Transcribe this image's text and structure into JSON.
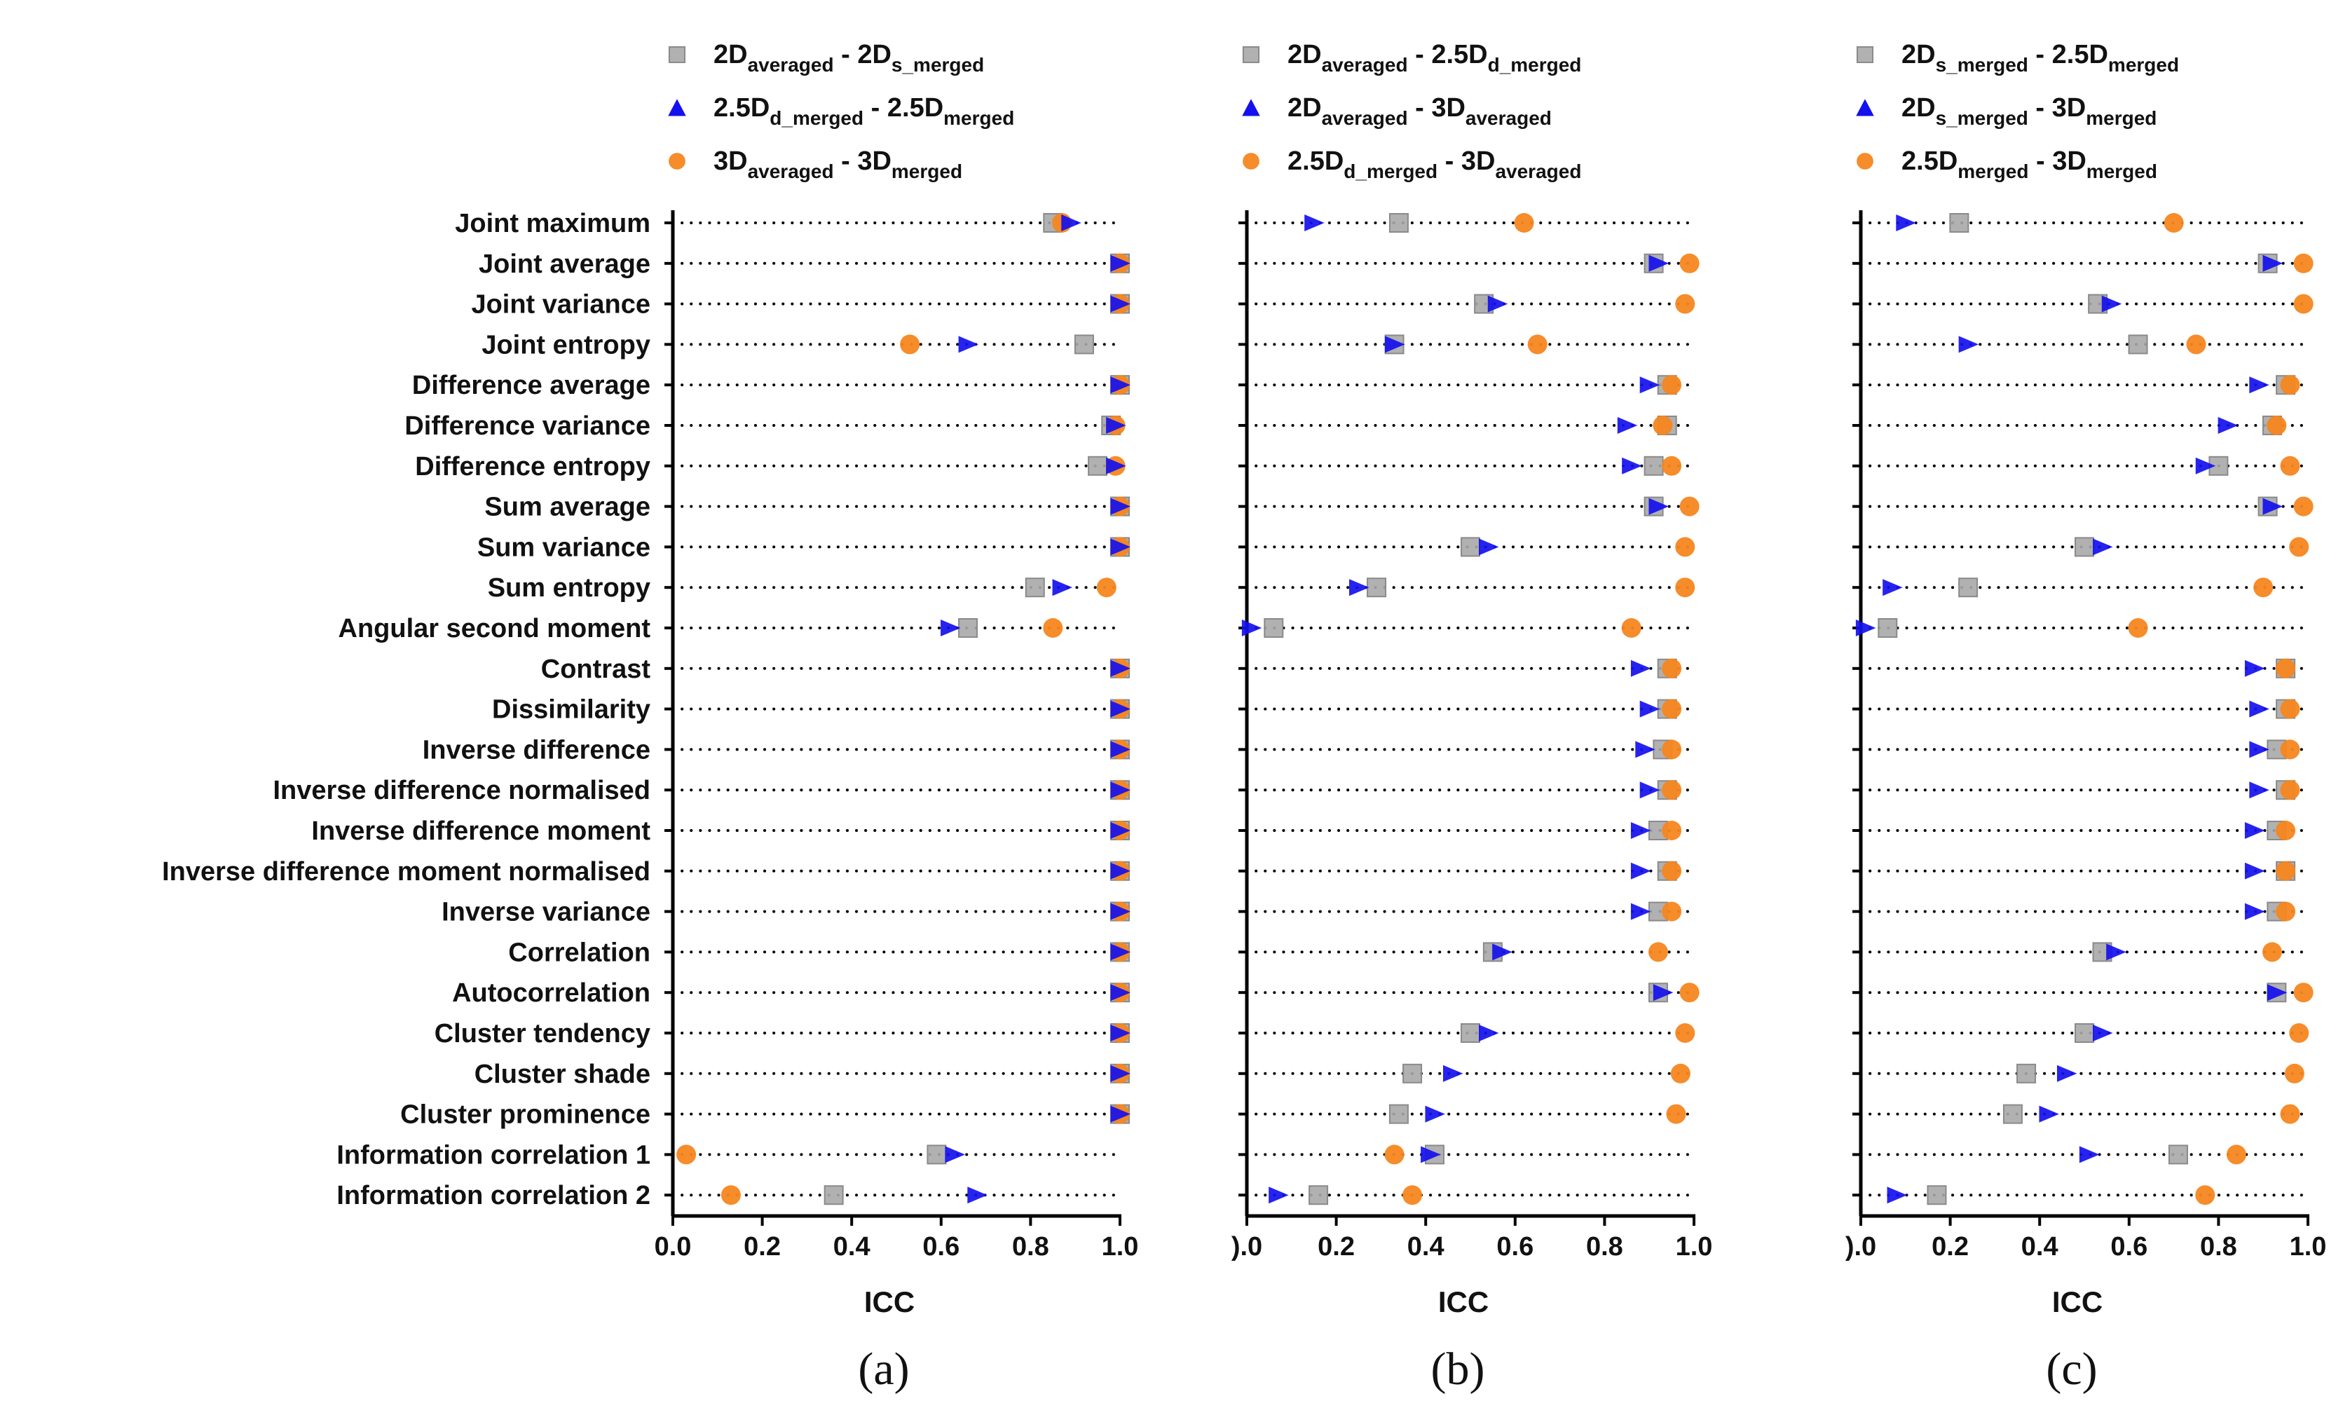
{
  "colors": {
    "gray": "#a8a8a8",
    "gray_edge": "#8a8a8a",
    "blue": "#1410ee",
    "orange": "#f5861f",
    "axis": "#000000",
    "dots": "#000000"
  },
  "features": [
    "Joint maximum",
    "Joint average",
    "Joint variance",
    "Joint entropy",
    "Difference average",
    "Difference variance",
    "Difference entropy",
    "Sum average",
    "Sum variance",
    "Sum entropy",
    "Angular second moment",
    "Contrast",
    "Dissimilarity",
    "Inverse difference",
    "Inverse difference normalised",
    "Inverse difference moment",
    "Inverse difference moment normalised",
    "Inverse variance",
    "Correlation",
    "Autocorrelation",
    "Cluster tendency",
    "Cluster shade",
    "Cluster prominence",
    "Information correlation 1",
    "Information correlation 2"
  ],
  "chart_data": [
    {
      "type": "scatter",
      "panel_label": "(a)",
      "xlabel": "ICC",
      "xlim": [
        0.0,
        1.0
      ],
      "xticks": [
        "0.0",
        "0.2",
        "0.4",
        "0.6",
        "0.8",
        "1.0"
      ],
      "legend": [
        {
          "marker": "square",
          "text": [
            [
              "2D",
              "main"
            ],
            [
              "averaged",
              "sub"
            ],
            [
              " - 2D",
              "main"
            ],
            [
              "s_merged",
              "sub"
            ]
          ]
        },
        {
          "marker": "triangle",
          "text": [
            [
              "2.5D",
              "main"
            ],
            [
              "d_merged",
              "sub"
            ],
            [
              " - 2.5D",
              "main"
            ],
            [
              "merged",
              "sub"
            ]
          ]
        },
        {
          "marker": "circle",
          "text": [
            [
              "3D",
              "main"
            ],
            [
              "averaged",
              "sub"
            ],
            [
              " - 3D",
              "main"
            ],
            [
              "merged",
              "sub"
            ]
          ]
        }
      ],
      "series": [
        {
          "name": "2Daveraged - 2Ds_merged",
          "marker": "square",
          "color": "#a8a8a8",
          "values": [
            0.85,
            1.0,
            1.0,
            0.92,
            1.0,
            0.98,
            0.95,
            1.0,
            1.0,
            0.81,
            0.66,
            1.0,
            1.0,
            1.0,
            1.0,
            1.0,
            1.0,
            1.0,
            1.0,
            1.0,
            1.0,
            1.0,
            1.0,
            0.59,
            0.36
          ]
        },
        {
          "name": "2.5Dd_merged - 2.5Dmerged",
          "marker": "triangle",
          "color": "#1410ee",
          "values": [
            0.89,
            1.0,
            1.0,
            0.66,
            1.0,
            0.99,
            0.99,
            1.0,
            1.0,
            0.87,
            0.62,
            1.0,
            1.0,
            1.0,
            1.0,
            1.0,
            1.0,
            1.0,
            1.0,
            1.0,
            1.0,
            1.0,
            1.0,
            0.63,
            0.68
          ]
        },
        {
          "name": "3Daveraged - 3Dmerged",
          "marker": "circle",
          "color": "#f5861f",
          "values": [
            0.87,
            1.0,
            1.0,
            0.53,
            1.0,
            0.99,
            0.99,
            1.0,
            1.0,
            0.97,
            0.85,
            1.0,
            1.0,
            1.0,
            1.0,
            1.0,
            1.0,
            1.0,
            1.0,
            1.0,
            1.0,
            1.0,
            1.0,
            0.03,
            0.13
          ]
        }
      ]
    },
    {
      "type": "scatter",
      "panel_label": "(b)",
      "xlabel": "ICC",
      "xlim": [
        0.0,
        1.0
      ],
      "xticks": [
        ").0",
        "0.2",
        "0.4",
        "0.6",
        "0.8",
        "1.0"
      ],
      "legend": [
        {
          "marker": "square",
          "text": [
            [
              "2D",
              "main"
            ],
            [
              "averaged",
              "sub"
            ],
            [
              " - 2.5D",
              "main"
            ],
            [
              "d_merged",
              "sub"
            ]
          ]
        },
        {
          "marker": "triangle",
          "text": [
            [
              "2D",
              "main"
            ],
            [
              "averaged",
              "sub"
            ],
            [
              " - 3D",
              "main"
            ],
            [
              "averaged",
              "sub"
            ]
          ]
        },
        {
          "marker": "circle",
          "text": [
            [
              "2.5D",
              "main"
            ],
            [
              "d_merged",
              "sub"
            ],
            [
              " - 3D",
              "main"
            ],
            [
              "averaged",
              "sub"
            ]
          ]
        }
      ],
      "series": [
        {
          "name": "2Daveraged - 2.5Dd_merged",
          "marker": "square",
          "color": "#a8a8a8",
          "values": [
            0.34,
            0.91,
            0.53,
            0.33,
            0.94,
            0.94,
            0.91,
            0.91,
            0.5,
            0.29,
            0.06,
            0.94,
            0.94,
            0.93,
            0.94,
            0.92,
            0.94,
            0.92,
            0.55,
            0.92,
            0.5,
            0.37,
            0.34,
            0.42,
            0.16
          ]
        },
        {
          "name": "2Daveraged - 3Daveraged",
          "marker": "triangle",
          "color": "#1410ee",
          "values": [
            0.15,
            0.92,
            0.56,
            0.33,
            0.9,
            0.85,
            0.86,
            0.92,
            0.54,
            0.25,
            0.01,
            0.88,
            0.9,
            0.89,
            0.9,
            0.88,
            0.88,
            0.88,
            0.57,
            0.93,
            0.54,
            0.46,
            0.42,
            0.41,
            0.07
          ]
        },
        {
          "name": "2.5Dd_merged - 3Daveraged",
          "marker": "circle",
          "color": "#f5861f",
          "values": [
            0.62,
            0.99,
            0.98,
            0.65,
            0.95,
            0.93,
            0.95,
            0.99,
            0.98,
            0.98,
            0.86,
            0.95,
            0.95,
            0.95,
            0.95,
            0.95,
            0.95,
            0.95,
            0.92,
            0.99,
            0.98,
            0.97,
            0.96,
            0.33,
            0.37
          ]
        }
      ]
    },
    {
      "type": "scatter",
      "panel_label": "(c)",
      "xlabel": "ICC",
      "xlim": [
        0.0,
        1.0
      ],
      "xticks": [
        ").0",
        "0.2",
        "0.4",
        "0.6",
        "0.8",
        "1.0"
      ],
      "legend": [
        {
          "marker": "square",
          "text": [
            [
              "2D",
              "main"
            ],
            [
              "s_merged",
              "sub"
            ],
            [
              " - 2.5D",
              "main"
            ],
            [
              "merged",
              "sub"
            ]
          ]
        },
        {
          "marker": "triangle",
          "text": [
            [
              "2D",
              "main"
            ],
            [
              "s_merged",
              "sub"
            ],
            [
              " - 3D",
              "main"
            ],
            [
              "merged",
              "sub"
            ]
          ]
        },
        {
          "marker": "circle",
          "text": [
            [
              "2.5D",
              "main"
            ],
            [
              "merged",
              "sub"
            ],
            [
              " - 3D",
              "main"
            ],
            [
              "merged",
              "sub"
            ]
          ]
        }
      ],
      "series": [
        {
          "name": "2Ds_merged - 2.5Dmerged",
          "marker": "square",
          "color": "#a8a8a8",
          "values": [
            0.22,
            0.91,
            0.53,
            0.62,
            0.95,
            0.92,
            0.8,
            0.91,
            0.5,
            0.24,
            0.06,
            0.95,
            0.95,
            0.93,
            0.95,
            0.93,
            0.95,
            0.93,
            0.54,
            0.93,
            0.5,
            0.37,
            0.34,
            0.71,
            0.17
          ]
        },
        {
          "name": "2Ds_merged - 3Dmerged",
          "marker": "triangle",
          "color": "#1410ee",
          "values": [
            0.1,
            0.92,
            0.56,
            0.24,
            0.89,
            0.82,
            0.77,
            0.92,
            0.54,
            0.07,
            0.01,
            0.88,
            0.89,
            0.89,
            0.89,
            0.88,
            0.88,
            0.88,
            0.57,
            0.93,
            0.54,
            0.46,
            0.42,
            0.51,
            0.08
          ]
        },
        {
          "name": "2.5Dmerged - 3Dmerged",
          "marker": "circle",
          "color": "#f5861f",
          "values": [
            0.7,
            0.99,
            0.99,
            0.75,
            0.96,
            0.93,
            0.96,
            0.99,
            0.98,
            0.9,
            0.62,
            0.95,
            0.96,
            0.96,
            0.96,
            0.95,
            0.95,
            0.95,
            0.92,
            0.99,
            0.98,
            0.97,
            0.96,
            0.84,
            0.77
          ]
        }
      ]
    }
  ]
}
